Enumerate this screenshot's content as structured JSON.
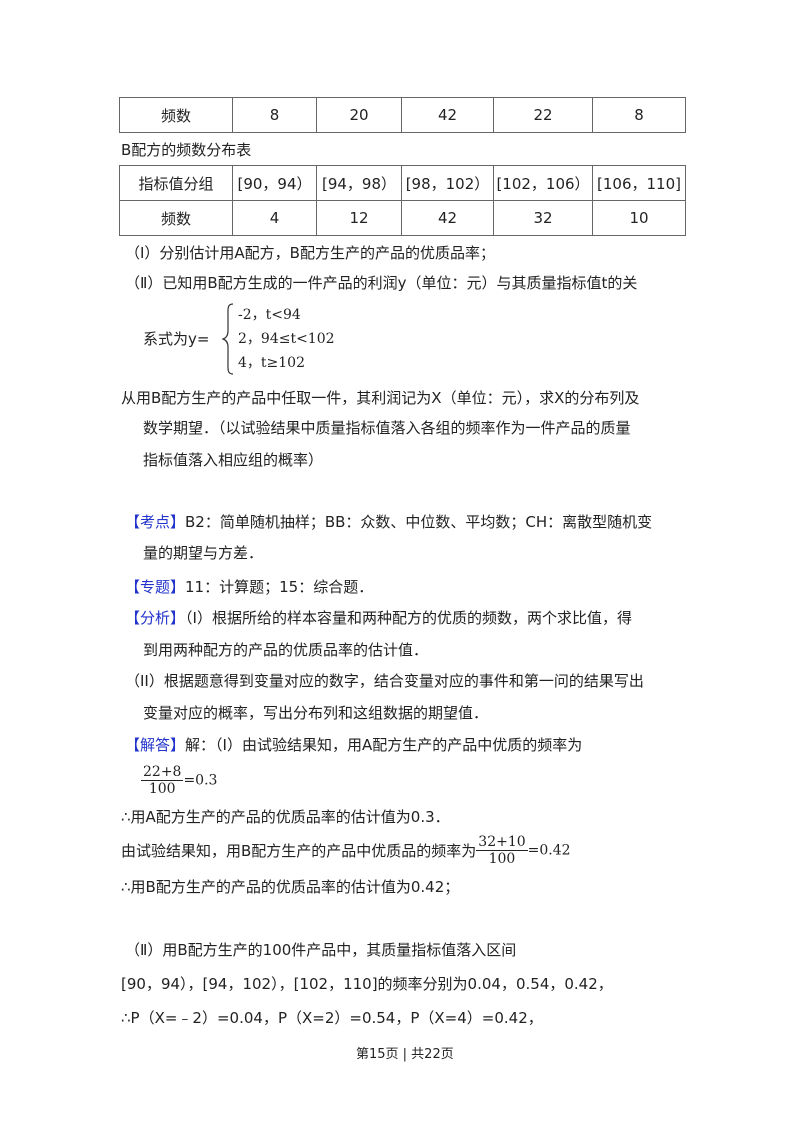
{
  "table_a_tail": {
    "label": "频数",
    "values": [
      "8",
      "20",
      "42",
      "22",
      "8"
    ]
  },
  "table_b": {
    "caption": "B配方的频数分布表",
    "header": [
      "指标值分组",
      "[90，94）",
      "[94，98）",
      "[98，102）",
      "[102，106）",
      "[106，110]"
    ],
    "row": [
      "频数",
      "4",
      "12",
      "42",
      "32",
      "10"
    ]
  },
  "question": {
    "part1": "（Ⅰ）分别估计用A配方，B配方生产的产品的优质品率；",
    "part2_line1": "（Ⅱ）已知用B配方生成的一件产品的利润y（单位：元）与其质量指标值t的关",
    "part2_prefix": "系式为y=",
    "cases": [
      "-2，t<94",
      "2，94≤t<102",
      "4，t≥102"
    ],
    "part2_line2": "从用B配方生产的产品中任取一件，其利润记为X（单位：元），求X的分布列及",
    "part2_line3": "数学期望．（以试验结果中质量指标值落入各组的频率作为一件产品的质量",
    "part2_line4": "指标值落入相应组的概率）"
  },
  "kaodian": {
    "tag": "【考点】",
    "line1": "B2：简单随机抽样；BB：众数、中位数、平均数；CH：离散型随机变",
    "line2": "量的期望与方差．"
  },
  "zhuanti": {
    "tag": "【专题】",
    "text": "11：计算题；15：综合题．"
  },
  "fenxi": {
    "tag": "【分析】",
    "line1": "（I）根据所给的样本容量和两种配方的优质的频数，两个求比值，得",
    "line2": "到用两种配方的产品的优质品率的估计值．",
    "line3": "（II）根据题意得到变量对应的数字，结合变量对应的事件和第一问的结果写出",
    "line4": "变量对应的概率，写出分布列和这组数据的期望值．"
  },
  "jieda": {
    "tag": "【解答】",
    "line1": "解：（Ⅰ）由试验结果知，用A配方生产的产品中优质的频率为",
    "frac1": {
      "num": "22+8",
      "den": "100",
      "result": "=0.3"
    },
    "line2": "∴用A配方生产的产品的优质品率的估计值为0.3．",
    "line3": "由试验结果知，用B配方生产的产品中优质品的频率为",
    "frac2": {
      "num": "32+10",
      "den": "100",
      "result": "=0.42"
    },
    "line4": "∴用B配方生产的产品的优质品率的估计值为0.42；",
    "line5": "（Ⅱ）用B配方生产的100件产品中，其质量指标值落入区间",
    "line6": "[90，94），[94，102），[102，110]的频率分别为0.04，0.54，0.42，",
    "line7": "∴P（X=﹣2）=0.04，P（X=2）=0.54，P（X=4）=0.42，"
  },
  "footer": "第15页 | 共22页"
}
